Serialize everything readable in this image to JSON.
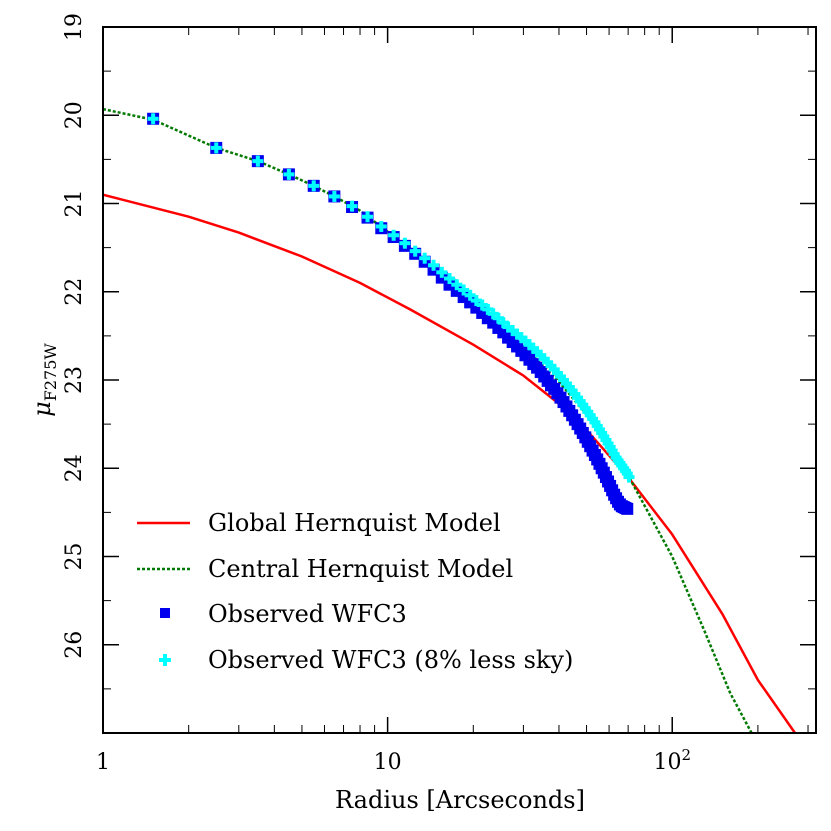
{
  "chart_data": {
    "type": "scatter",
    "title": "",
    "xlabel": "Radius [Arcseconds]",
    "ylabel": "μ",
    "ylabel_sub": "F275W",
    "x_scale": "log",
    "xlim": [
      1,
      320
    ],
    "ylim": [
      27,
      19
    ],
    "y_inverted": true,
    "grid": false,
    "legend_position": "lower-left",
    "x_ticks": [
      {
        "value": 1,
        "label": "1",
        "sup": ""
      },
      {
        "value": 10,
        "label": "10",
        "sup": ""
      },
      {
        "value": 100,
        "label": "10",
        "sup": "2"
      }
    ],
    "y_ticks": [
      {
        "value": 19,
        "label": "19"
      },
      {
        "value": 20,
        "label": "20"
      },
      {
        "value": 21,
        "label": "21"
      },
      {
        "value": 22,
        "label": "22"
      },
      {
        "value": 23,
        "label": "23"
      },
      {
        "value": 24,
        "label": "24"
      },
      {
        "value": 25,
        "label": "25"
      },
      {
        "value": 26,
        "label": "26"
      }
    ],
    "series": [
      {
        "name": "Global Hernquist Model",
        "kind": "line",
        "color": "#ff0000",
        "dash": "solid",
        "x": [
          1,
          2,
          3,
          5,
          8,
          12,
          20,
          30,
          45,
          70,
          100,
          150,
          200,
          270
        ],
        "y": [
          20.9,
          21.15,
          21.33,
          21.6,
          21.9,
          22.2,
          22.6,
          22.95,
          23.4,
          24.1,
          24.75,
          25.65,
          26.4,
          27.0
        ]
      },
      {
        "name": "Central Hernquist Model",
        "kind": "line",
        "color": "#007a00",
        "dash": "dotted",
        "x": [
          1,
          1.5,
          2.5,
          3.5,
          4.5,
          5.5,
          6.5,
          8,
          10,
          13,
          17,
          22,
          30,
          40,
          55,
          70,
          100,
          130,
          160,
          190
        ],
        "y": [
          19.93,
          20.05,
          20.37,
          20.52,
          20.67,
          20.8,
          20.92,
          21.08,
          21.32,
          21.62,
          21.93,
          22.24,
          22.62,
          23.02,
          23.55,
          24.08,
          25.0,
          25.85,
          26.55,
          27.0
        ]
      },
      {
        "name": "Observed WFC3",
        "kind": "marker",
        "marker": "square",
        "color": "#0000ee",
        "x": [
          1.5,
          2.5,
          3.5,
          4.5,
          5.5,
          6.5,
          7.5,
          8.5,
          9.5,
          10.5,
          11.5,
          12.5,
          13.5,
          14.5,
          15.5,
          16.5,
          17.5,
          18.5,
          19.5,
          20.5,
          21.5,
          22.5,
          23.5,
          24.5,
          25.5,
          26.5,
          27.5,
          28.5,
          29.5,
          30.5,
          31.5,
          32.5,
          33.5,
          34.5,
          35.5,
          36.5,
          37.5,
          38.5,
          39.5,
          40.5,
          41.5,
          42.5,
          43.5,
          44.5,
          45.5,
          46.5,
          47.5,
          48.5,
          49.5,
          50.5,
          51.5,
          52.5,
          53.5,
          54.5,
          55.5,
          56.5,
          57.5,
          58.5,
          59.5,
          60.5,
          61.5,
          62.5,
          63.5,
          64.5,
          65.5,
          66.5,
          67.5,
          68.5,
          69.5
        ],
        "y": [
          20.04,
          20.37,
          20.52,
          20.67,
          20.8,
          20.92,
          21.04,
          21.16,
          21.28,
          21.38,
          21.48,
          21.57,
          21.66,
          21.75,
          21.84,
          21.92,
          21.99,
          22.06,
          22.12,
          22.18,
          22.24,
          22.3,
          22.35,
          22.41,
          22.46,
          22.52,
          22.57,
          22.62,
          22.67,
          22.72,
          22.77,
          22.82,
          22.86,
          22.91,
          22.96,
          23.01,
          23.06,
          23.1,
          23.15,
          23.2,
          23.25,
          23.3,
          23.35,
          23.4,
          23.45,
          23.5,
          23.55,
          23.6,
          23.65,
          23.7,
          23.75,
          23.8,
          23.85,
          23.9,
          23.95,
          24.0,
          24.05,
          24.1,
          24.15,
          24.2,
          24.25,
          24.3,
          24.34,
          24.38,
          24.41,
          24.43,
          24.44,
          24.45,
          24.46
        ]
      },
      {
        "name": "Observed WFC3 (8% less sky)",
        "kind": "marker",
        "marker": "plus",
        "color": "#00ffff",
        "x": [
          1.5,
          2.5,
          3.5,
          4.5,
          5.5,
          6.5,
          7.5,
          8.5,
          9.5,
          10.5,
          11.5,
          12.5,
          13.5,
          14.5,
          15.5,
          16.5,
          17.5,
          18.5,
          19.5,
          20.5,
          21.5,
          22.5,
          23.5,
          24.5,
          25.5,
          26.5,
          27.5,
          28.5,
          29.5,
          30.5,
          31.5,
          32.5,
          33.5,
          34.5,
          35.5,
          36.5,
          37.5,
          38.5,
          39.5,
          40.5,
          41.5,
          42.5,
          43.5,
          44.5,
          45.5,
          46.5,
          47.5,
          48.5,
          49.5,
          50.5,
          51.5,
          52.5,
          53.5,
          54.5,
          55.5,
          56.5,
          57.5,
          58.5,
          59.5,
          60.5,
          61.5,
          62.5,
          63.5,
          64.5,
          65.5,
          66.5,
          67.5,
          68.5,
          69.5,
          70.5
        ],
        "y": [
          20.04,
          20.37,
          20.52,
          20.67,
          20.8,
          20.92,
          21.03,
          21.15,
          21.26,
          21.36,
          21.45,
          21.54,
          21.62,
          21.7,
          21.78,
          21.85,
          21.92,
          21.98,
          22.04,
          22.1,
          22.15,
          22.2,
          22.25,
          22.3,
          22.35,
          22.4,
          22.44,
          22.48,
          22.52,
          22.56,
          22.6,
          22.64,
          22.68,
          22.72,
          22.76,
          22.8,
          22.84,
          22.88,
          22.92,
          22.96,
          23.0,
          23.04,
          23.08,
          23.12,
          23.16,
          23.2,
          23.24,
          23.28,
          23.32,
          23.36,
          23.4,
          23.44,
          23.48,
          23.52,
          23.56,
          23.6,
          23.64,
          23.68,
          23.72,
          23.76,
          23.8,
          23.84,
          23.88,
          23.91,
          23.94,
          23.97,
          24.0,
          24.03,
          24.06,
          24.1
        ]
      }
    ]
  }
}
